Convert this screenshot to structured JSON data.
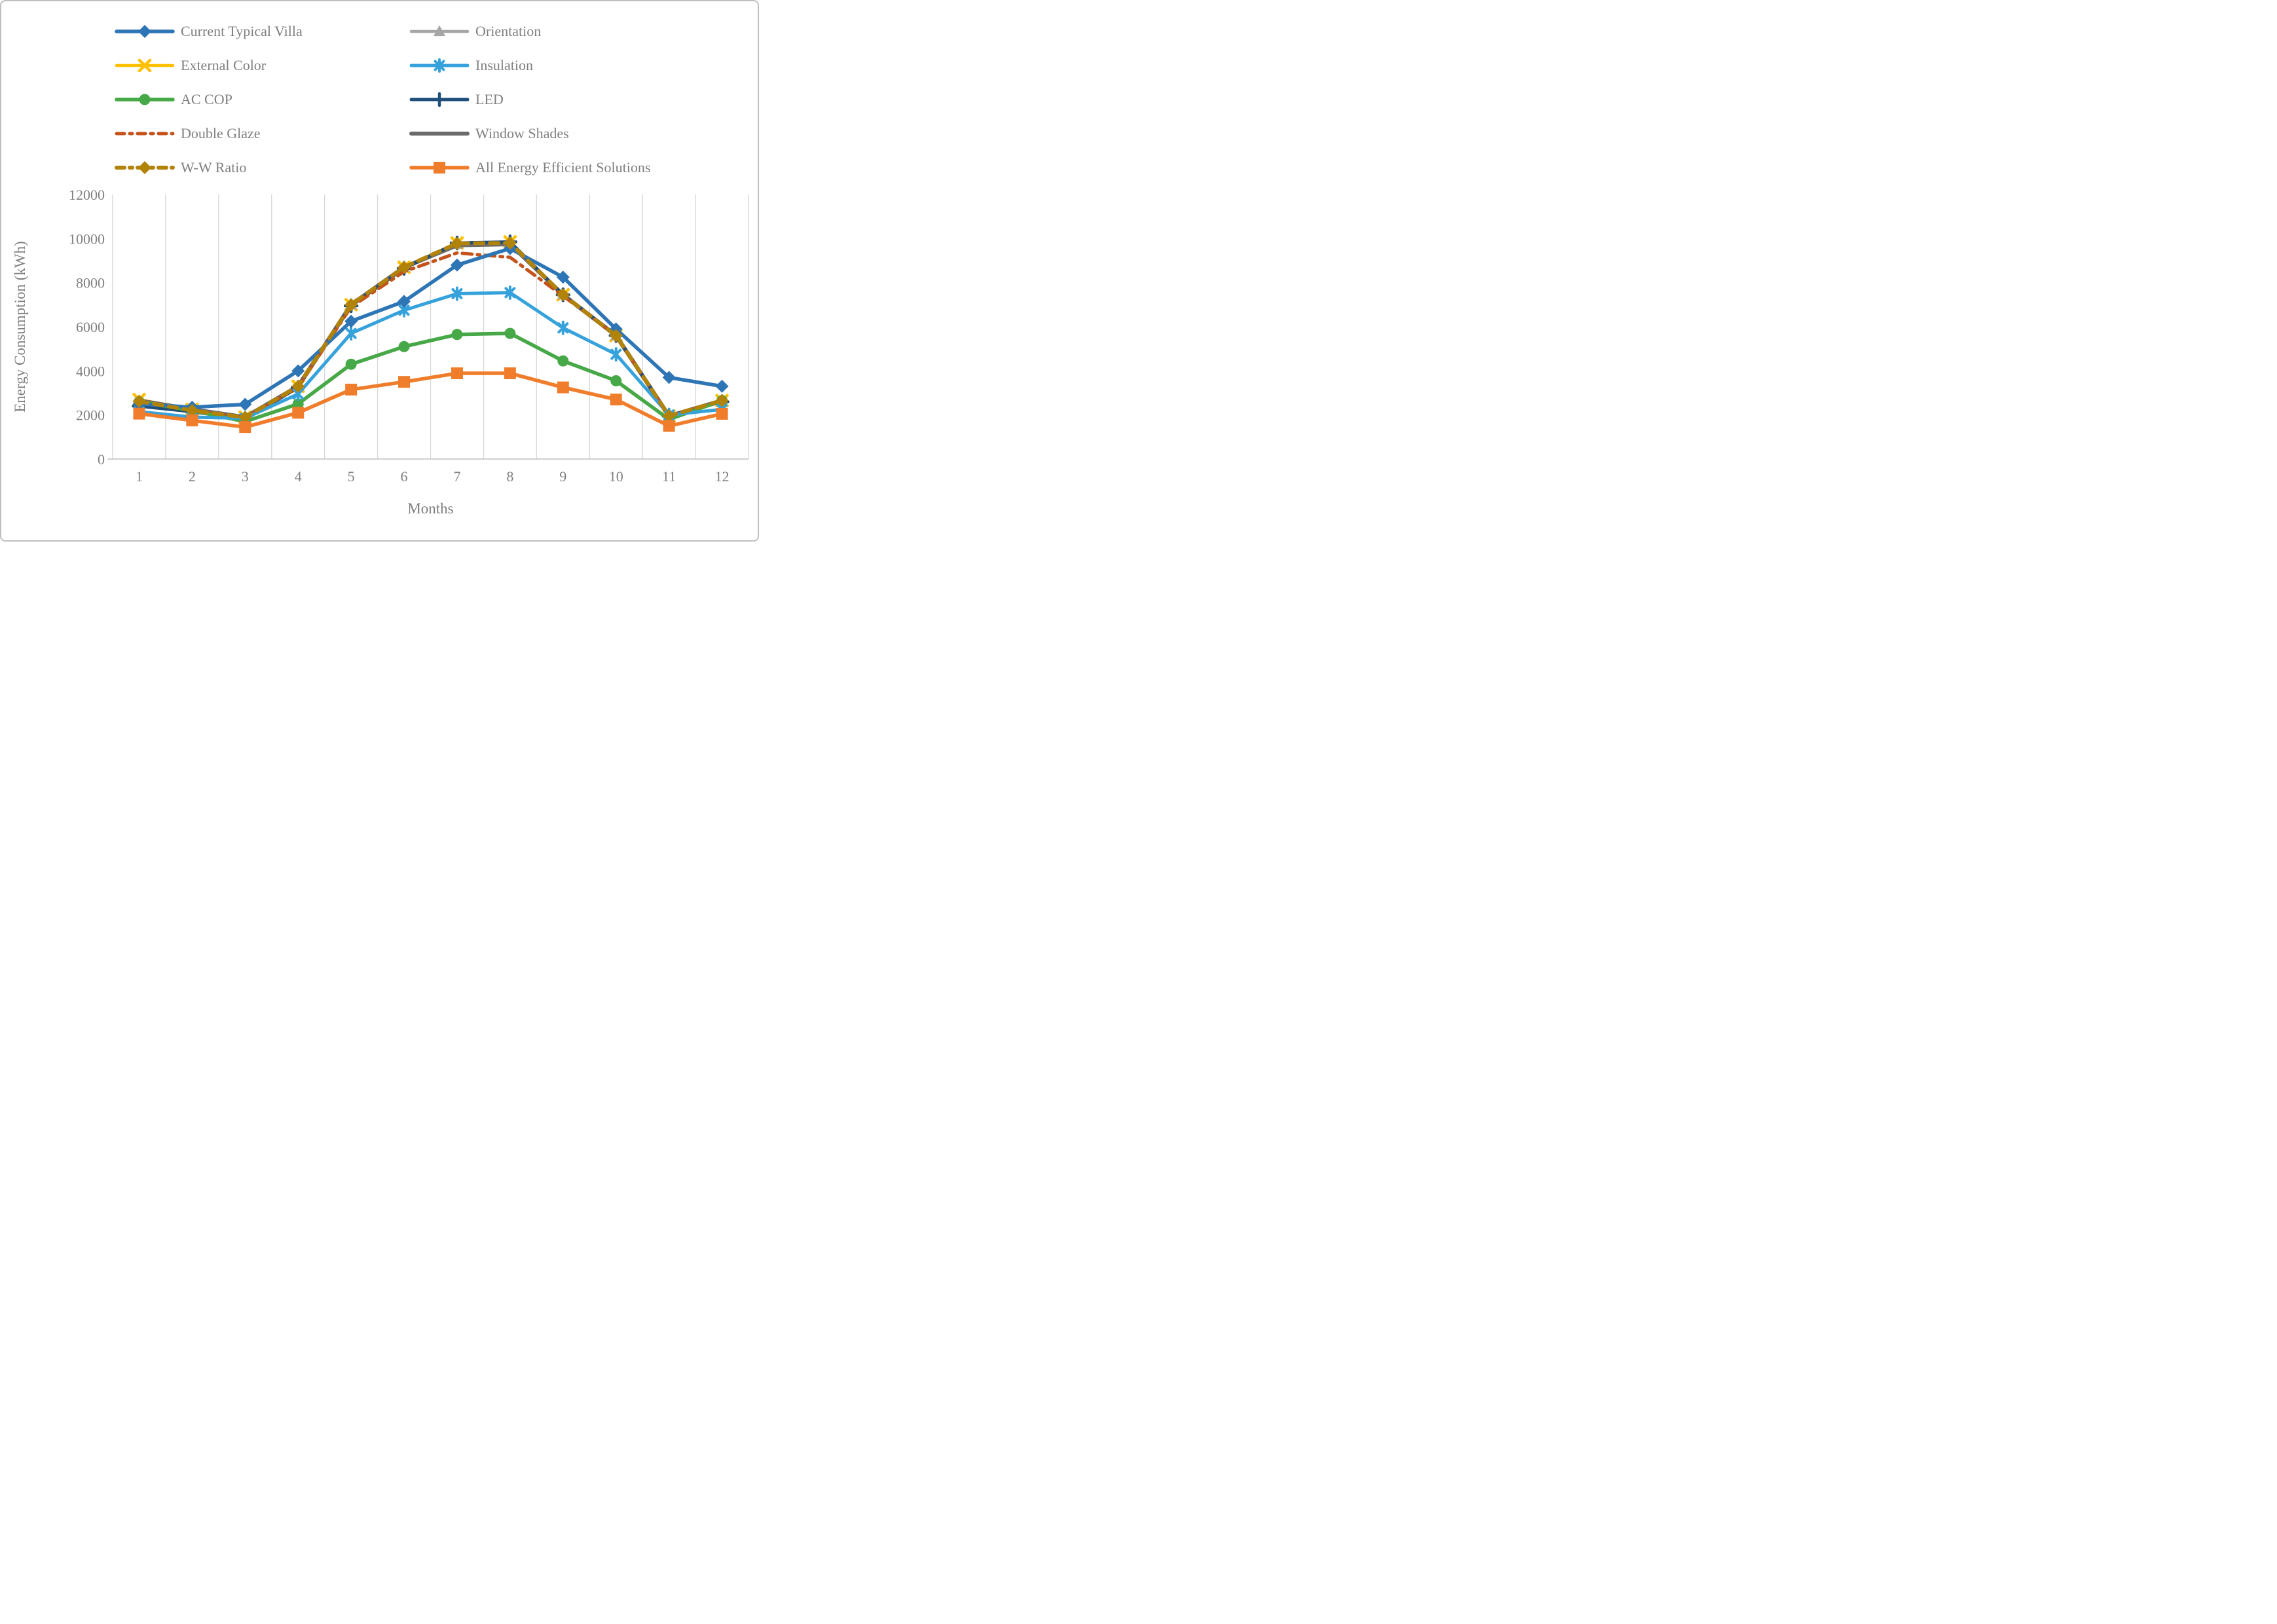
{
  "chart_data": {
    "type": "line",
    "title": "",
    "xlabel": "Months",
    "ylabel": "Energy Consumption (kWh)",
    "x": [
      "1",
      "2",
      "3",
      "4",
      "5",
      "6",
      "7",
      "8",
      "9",
      "10",
      "11",
      "12"
    ],
    "ylim": [
      0,
      12000
    ],
    "yticks": [
      0,
      2000,
      4000,
      6000,
      8000,
      10000,
      12000
    ],
    "grid": "vertical-category-gridlines-only",
    "legend_position": "top-two-columns",
    "axis_text_color": "#7F7F7F",
    "gridline_color": "#D9D9D9",
    "axis_line_color": "#BFBFBF",
    "series": [
      {
        "name": "Current Typical Villa",
        "color": "#2E75B6",
        "marker": "diamond",
        "line": "solid",
        "values": [
          2500,
          2350,
          2480,
          4000,
          6250,
          7150,
          8800,
          9550,
          8250,
          5900,
          3700,
          3300
        ]
      },
      {
        "name": "Orientation",
        "color": "#A6A6A6",
        "marker": "triangle",
        "line": "solid",
        "values": [
          2650,
          2250,
          1900,
          3300,
          7000,
          8700,
          9750,
          9800,
          7450,
          5600,
          1950,
          2650
        ]
      },
      {
        "name": "External Color",
        "color": "#FFC000",
        "marker": "x",
        "line": "solid",
        "values": [
          2700,
          2250,
          1900,
          3300,
          7000,
          8700,
          9800,
          9850,
          7450,
          5600,
          1950,
          2650
        ]
      },
      {
        "name": "Insulation",
        "color": "#36A2DB",
        "marker": "asterisk",
        "line": "solid",
        "values": [
          2150,
          1900,
          1850,
          2950,
          5700,
          6750,
          7500,
          7550,
          5950,
          4750,
          2000,
          2250
        ]
      },
      {
        "name": "AC COP",
        "color": "#46A846",
        "marker": "circle",
        "line": "solid",
        "values": [
          2600,
          2200,
          1700,
          2500,
          4300,
          5100,
          5650,
          5700,
          4450,
          3550,
          1800,
          2650
        ]
      },
      {
        "name": "LED",
        "color": "#1F4E79",
        "marker": "plus",
        "line": "solid",
        "values": [
          2400,
          2150,
          1800,
          3250,
          6950,
          8650,
          9800,
          9850,
          7450,
          5600,
          1950,
          2600
        ]
      },
      {
        "name": "Double Glaze",
        "color": "#C4521A",
        "marker": "none",
        "line": "dashdot",
        "values": [
          2620,
          2200,
          1880,
          3250,
          6900,
          8500,
          9350,
          9150,
          7400,
          5600,
          1950,
          2650
        ]
      },
      {
        "name": "Window Shades",
        "color": "#6B6B6B",
        "marker": "none",
        "line": "solid",
        "values": [
          2650,
          2250,
          1900,
          3300,
          7000,
          8700,
          9700,
          9750,
          7450,
          5600,
          1950,
          2650
        ]
      },
      {
        "name": "W-W Ratio",
        "color": "#B28309",
        "marker": "diamond",
        "line": "dashed",
        "values": [
          2620,
          2200,
          1890,
          3300,
          7000,
          8700,
          9780,
          9800,
          7450,
          5600,
          1960,
          2650
        ]
      },
      {
        "name": "All Energy Efficient Solutions",
        "color": "#F07D2B",
        "marker": "square",
        "line": "solid",
        "values": [
          2060,
          1750,
          1450,
          2100,
          3150,
          3500,
          3890,
          3890,
          3250,
          2700,
          1500,
          2050
        ]
      }
    ],
    "draw_order": [
      2,
      1,
      7,
      5,
      6,
      4,
      3,
      0,
      8,
      9
    ]
  }
}
